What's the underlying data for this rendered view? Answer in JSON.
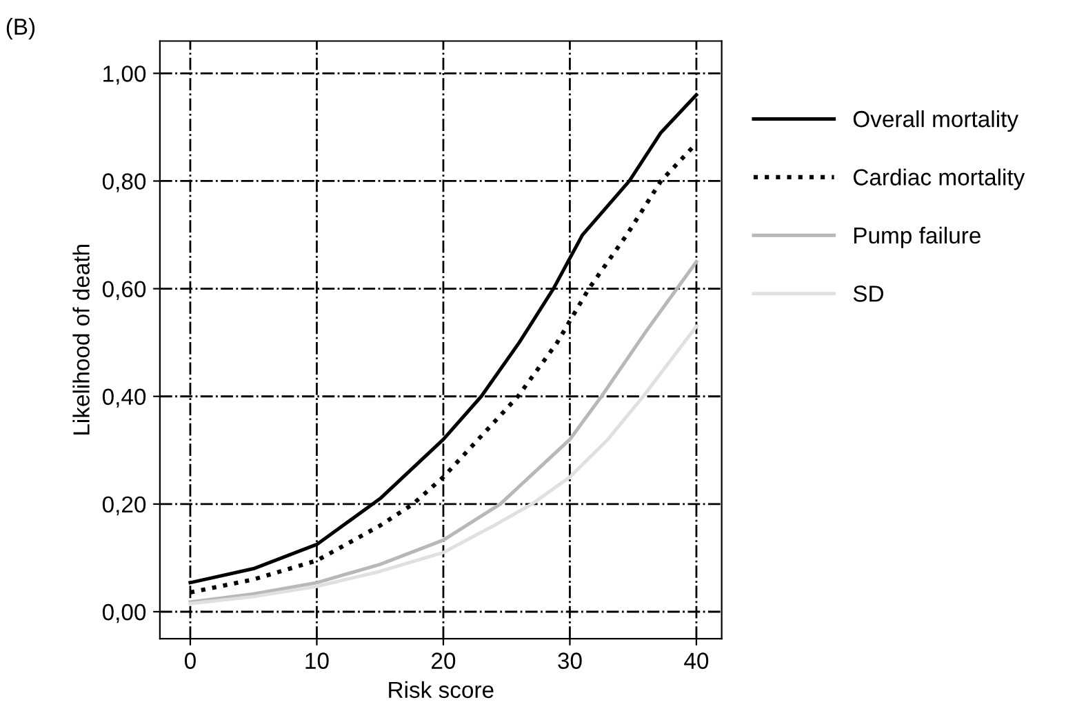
{
  "chart_data": {
    "type": "line",
    "title": "(B)",
    "xlabel": "Risk score",
    "ylabel": "Likelihood of death",
    "xlim": [
      -2.4,
      42
    ],
    "ylim": [
      -0.05,
      1.06
    ],
    "xticks": [
      0,
      10,
      20,
      30,
      40
    ],
    "yticks": [
      {
        "value": 0,
        "label": "0,00"
      },
      {
        "value": 0.2,
        "label": "0,20"
      },
      {
        "value": 0.4,
        "label": "0,40"
      },
      {
        "value": 0.6,
        "label": "0,60"
      },
      {
        "value": 0.8,
        "label": "0,80"
      },
      {
        "value": 1.0,
        "label": "1,00"
      }
    ],
    "grid": true,
    "legend": "right",
    "marker": "none",
    "series": [
      {
        "name": "Overall mortality",
        "color": "#000000",
        "line_style": "solid",
        "x": [
          0,
          5,
          10,
          15,
          20,
          23,
          26,
          28.7,
          31,
          34.7,
          37.2,
          40
        ],
        "values": [
          0.054,
          0.08,
          0.125,
          0.21,
          0.32,
          0.4,
          0.5,
          0.6,
          0.7,
          0.8,
          0.89,
          0.96
        ]
      },
      {
        "name": "Cardiac mortality",
        "color": "#000000",
        "line_style": "dotted",
        "x": [
          0,
          5,
          10,
          15,
          17.6,
          20,
          25.9,
          29,
          31.5,
          34.5,
          37.2,
          40
        ],
        "values": [
          0.036,
          0.06,
          0.095,
          0.16,
          0.2,
          0.25,
          0.4,
          0.5,
          0.6,
          0.7,
          0.8,
          0.87
        ]
      },
      {
        "name": "Pump failure",
        "color": "#b8b8b8",
        "line_style": "solid",
        "x": [
          0,
          5,
          10,
          15,
          20,
          24.5,
          30,
          32.5,
          36,
          40
        ],
        "values": [
          0.018,
          0.033,
          0.054,
          0.088,
          0.133,
          0.2,
          0.32,
          0.4,
          0.52,
          0.65
        ]
      },
      {
        "name": "SD",
        "color": "#e0e0e0",
        "line_style": "solid",
        "x": [
          0,
          5,
          10,
          15,
          20,
          24,
          27,
          30,
          33,
          35.8,
          40
        ],
        "values": [
          0.015,
          0.028,
          0.047,
          0.075,
          0.11,
          0.16,
          0.2,
          0.25,
          0.32,
          0.4,
          0.53
        ]
      }
    ]
  }
}
